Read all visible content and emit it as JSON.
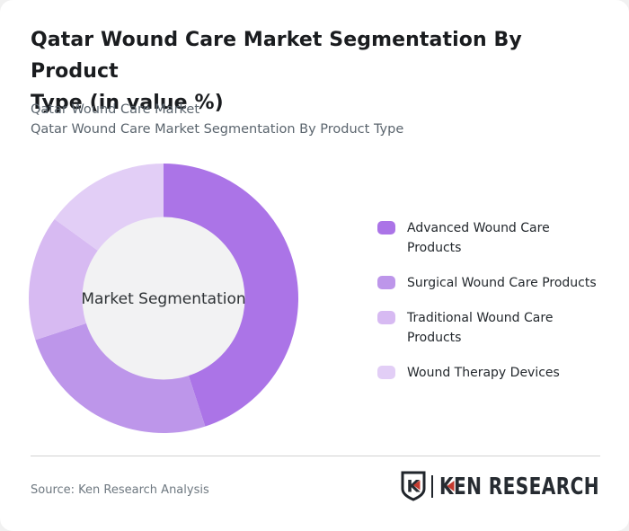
{
  "header": {
    "title": "Qatar Wound Care Market Segmentation By Product\nType (in value %)",
    "subtitle_line1": "Qatar Wound Care Market",
    "subtitle_line2": "Qatar Wound Care Market Segmentation By Product Type"
  },
  "chart_data": {
    "type": "pie",
    "variant": "donut",
    "title": "Qatar Wound Care Market Segmentation By Product Type (in value %)",
    "center_label": "Market Segmentation",
    "start_angle_deg": 0,
    "direction": "clockwise",
    "data_labels_shown": false,
    "legend_position": "right",
    "hole_color": "#f2f2f3",
    "segments": [
      {
        "label": "Advanced Wound Care\nProducts",
        "value_pct": 45,
        "color": "#ab74e7"
      },
      {
        "label": "Surgical Wound Care Products",
        "value_pct": 25,
        "color": "#bd96ea"
      },
      {
        "label": "Traditional Wound Care\nProducts",
        "value_pct": 15,
        "color": "#d7baf2"
      },
      {
        "label": "Wound Therapy Devices",
        "value_pct": 15,
        "color": "#e2cef6"
      }
    ]
  },
  "footer": {
    "source": "Source: Ken Research Analysis",
    "logo": {
      "shield_letter": "K",
      "brand": "KEN RESEARCH",
      "accent_color": "#c43a2f",
      "text_color": "#262b31"
    }
  }
}
